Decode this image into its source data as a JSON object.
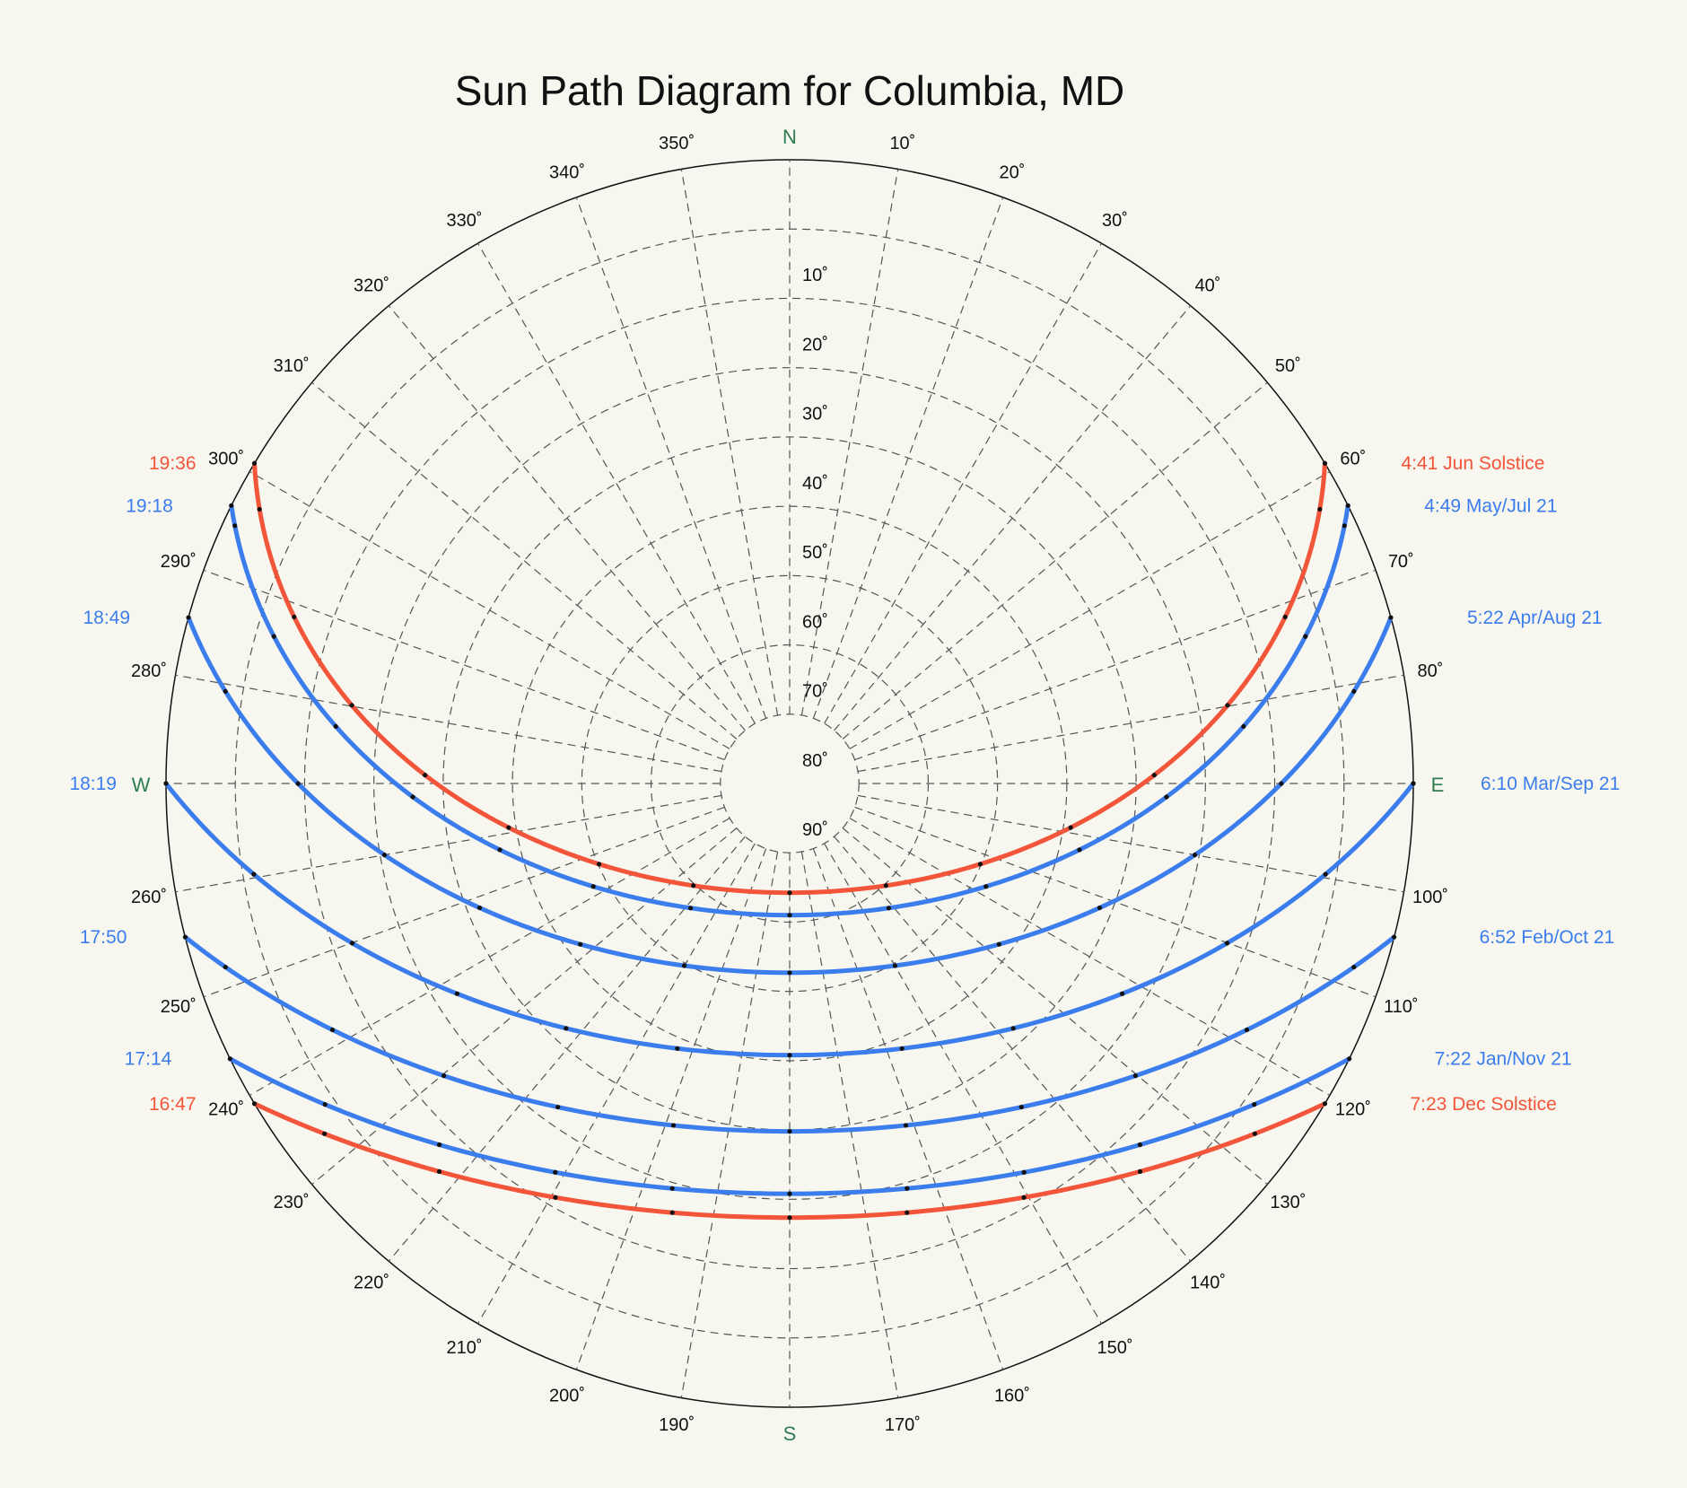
{
  "chart_data": {
    "type": "polar-line",
    "title": "Sun Path Diagram for Columbia, MD",
    "projection": "azimuth/altitude (polar, altitude 0 at rim, 90 at center)",
    "cardinals": {
      "n": "N",
      "e": "E",
      "s": "S",
      "w": "W"
    },
    "azimuth_ticks": [
      {
        "az": 10,
        "label": "10˚"
      },
      {
        "az": 20,
        "label": "20˚"
      },
      {
        "az": 30,
        "label": "30˚"
      },
      {
        "az": 40,
        "label": "40˚"
      },
      {
        "az": 50,
        "label": "50˚"
      },
      {
        "az": 60,
        "label": "60˚"
      },
      {
        "az": 70,
        "label": "70˚"
      },
      {
        "az": 80,
        "label": "80˚"
      },
      {
        "az": 100,
        "label": "100˚"
      },
      {
        "az": 110,
        "label": "110˚"
      },
      {
        "az": 120,
        "label": "120˚"
      },
      {
        "az": 130,
        "label": "130˚"
      },
      {
        "az": 140,
        "label": "140˚"
      },
      {
        "az": 150,
        "label": "150˚"
      },
      {
        "az": 160,
        "label": "160˚"
      },
      {
        "az": 170,
        "label": "170˚"
      },
      {
        "az": 190,
        "label": "190˚"
      },
      {
        "az": 200,
        "label": "200˚"
      },
      {
        "az": 210,
        "label": "210˚"
      },
      {
        "az": 220,
        "label": "220˚"
      },
      {
        "az": 230,
        "label": "230˚"
      },
      {
        "az": 240,
        "label": "240˚"
      },
      {
        "az": 250,
        "label": "250˚"
      },
      {
        "az": 260,
        "label": "260˚"
      },
      {
        "az": 280,
        "label": "280˚"
      },
      {
        "az": 290,
        "label": "290˚"
      },
      {
        "az": 300,
        "label": "300˚"
      },
      {
        "az": 310,
        "label": "310˚"
      },
      {
        "az": 320,
        "label": "320˚"
      },
      {
        "az": 330,
        "label": "330˚"
      },
      {
        "az": 340,
        "label": "340˚"
      },
      {
        "az": 350,
        "label": "350˚"
      }
    ],
    "altitude_ticks": [
      {
        "alt": 10,
        "label": "10˚"
      },
      {
        "alt": 20,
        "label": "20˚"
      },
      {
        "alt": 30,
        "label": "30˚"
      },
      {
        "alt": 40,
        "label": "40˚"
      },
      {
        "alt": 50,
        "label": "50˚"
      },
      {
        "alt": 60,
        "label": "60˚"
      },
      {
        "alt": 70,
        "label": "70˚"
      },
      {
        "alt": 80,
        "label": "80˚"
      },
      {
        "alt": 90,
        "label": "90˚"
      }
    ],
    "altitude_range": [
      0,
      90
    ],
    "azimuth_range": [
      0,
      360
    ],
    "grid": true,
    "series": [
      {
        "name": "Jun Solstice",
        "color": "#f2553a",
        "declination": 23.44,
        "rise_label": "4:41 Jun Solstice",
        "set_label": "19:36"
      },
      {
        "name": "May/Jul 21",
        "color": "#3b7ded",
        "declination": 20.2,
        "rise_label": "4:49 May/Jul 21",
        "set_label": "19:18"
      },
      {
        "name": "Apr/Aug 21",
        "color": "#3b7ded",
        "declination": 11.9,
        "rise_label": "5:22 Apr/Aug 21",
        "set_label": "18:49"
      },
      {
        "name": "Mar/Sep 21",
        "color": "#3b7ded",
        "declination": 0.0,
        "rise_label": "6:10 Mar/Sep 21",
        "set_label": "18:19"
      },
      {
        "name": "Feb/Oct 21",
        "color": "#3b7ded",
        "declination": -11.0,
        "rise_label": "6:52 Feb/Oct 21",
        "set_label": "17:50"
      },
      {
        "name": "Jan/Nov 21",
        "color": "#3b7ded",
        "declination": -20.0,
        "rise_label": "7:22 Jan/Nov 21",
        "set_label": "17:14"
      },
      {
        "name": "Dec Solstice",
        "color": "#f2553a",
        "declination": -23.44,
        "rise_label": "7:23 Dec Solstice",
        "set_label": "16:47"
      }
    ],
    "latitude_deg": 39.2,
    "hour_markers": "one black dot per hour along each path"
  },
  "colors": {
    "background": "#f8f7ef",
    "grid": "#555555",
    "cardinal": "#2e7d4f",
    "red": "#f2553a",
    "blue": "#3b7ded"
  }
}
